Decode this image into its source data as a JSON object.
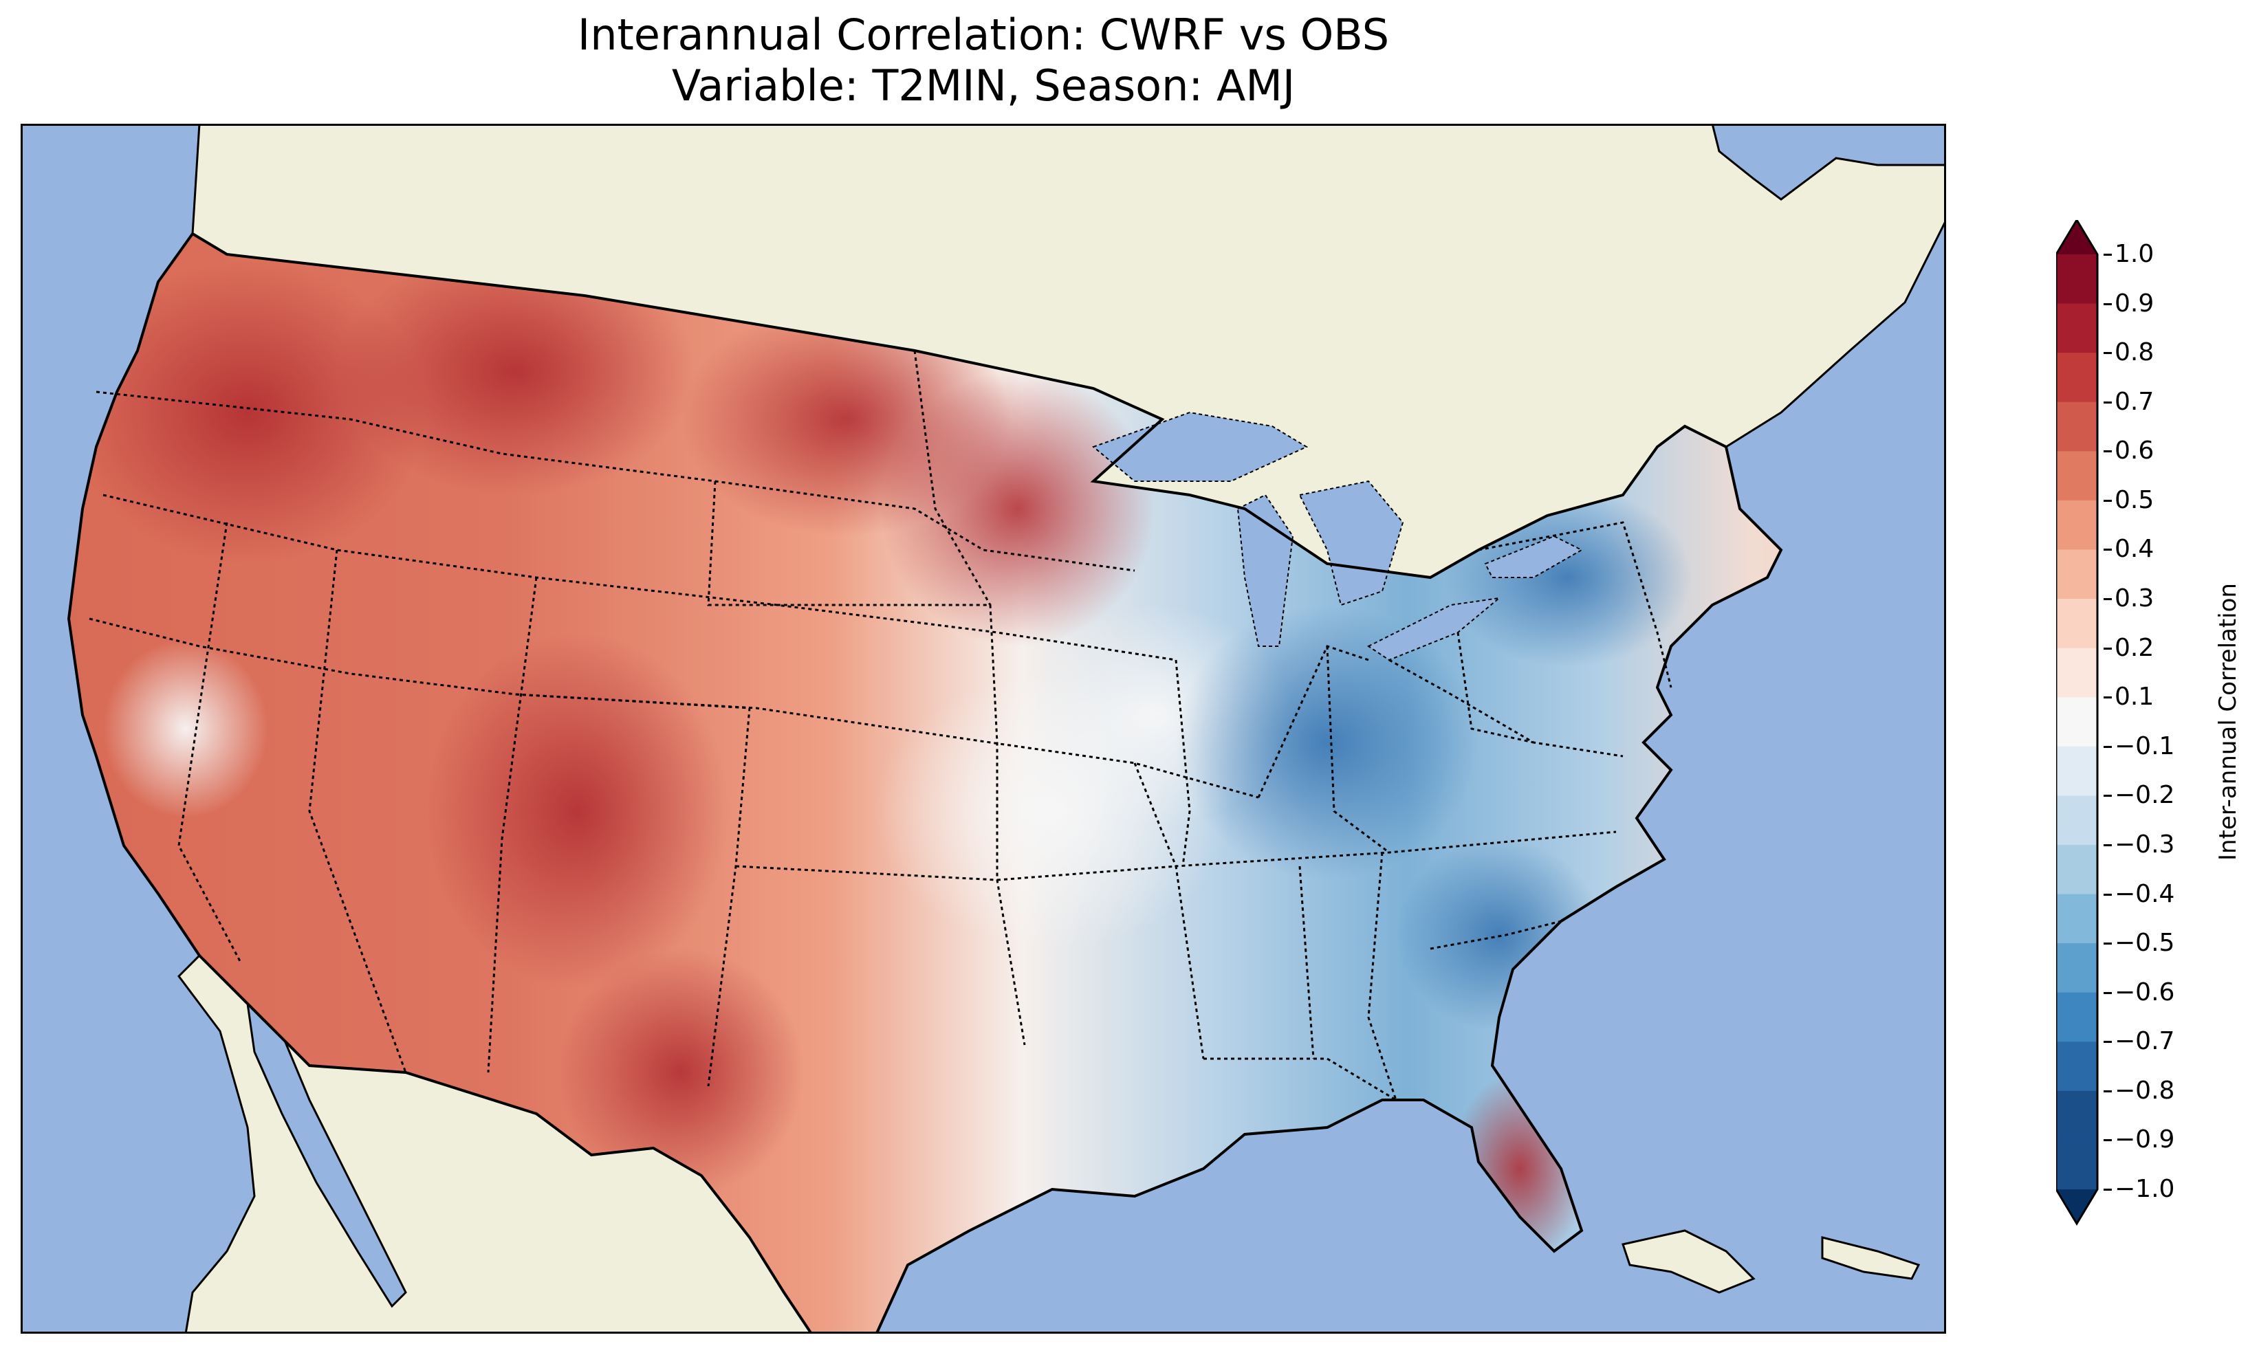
{
  "title": {
    "line1": "Interannual Correlation: CWRF vs OBS",
    "line2": "Variable: T2MIN, Season: AMJ"
  },
  "map": {
    "region": "Contiguous United States",
    "colors": {
      "ocean": "#96b4e0",
      "land": "#efefdb",
      "coastline": "#000000",
      "state_border": "#000000"
    }
  },
  "colorbar": {
    "label": "Inter-annual Correlation",
    "colormap": "RdBu_r",
    "extend": "both",
    "min": -1.0,
    "max": 1.0,
    "ticks": [
      "1.0",
      "0.9",
      "0.8",
      "0.7",
      "0.6",
      "0.5",
      "0.4",
      "0.3",
      "0.2",
      "0.1",
      "−0.1",
      "−0.2",
      "−0.3",
      "−0.4",
      "−0.5",
      "−0.6",
      "−0.7",
      "−0.8",
      "−0.9",
      "−1.0"
    ],
    "bins": [
      "#67001f",
      "#8b0d26",
      "#a81f2f",
      "#c23b3b",
      "#d05a4b",
      "#e07b62",
      "#ee9a7e",
      "#f5b89f",
      "#fad3c2",
      "#fbe7de",
      "#f7f7f7",
      "#e1ebf3",
      "#c7dcec",
      "#a8cde3",
      "#82b9da",
      "#5da0cd",
      "#3d86bf",
      "#2a6aa9",
      "#1a4f8a",
      "#053061"
    ]
  }
}
